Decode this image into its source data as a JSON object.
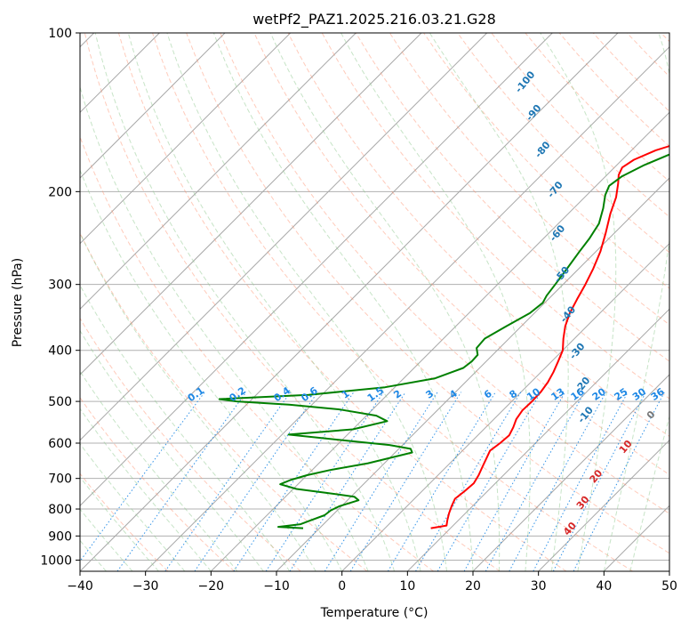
{
  "chart_data": {
    "type": "line",
    "title": "wetPf2_PAZ1.2025.216.03.21.G28",
    "xlabel": "Temperature (°C)",
    "ylabel": "Pressure (hPa)",
    "xlim": [
      -40,
      50
    ],
    "ylim": [
      1050,
      100
    ],
    "y_scale": "log",
    "grid": true,
    "x_ticks": [
      "−40",
      "−30",
      "−20",
      "−10",
      "0",
      "10",
      "20",
      "30",
      "40",
      "50"
    ],
    "y_ticks": [
      {
        "p": 100,
        "label": "100"
      },
      {
        "p": 200,
        "label": "200"
      },
      {
        "p": 300,
        "label": "300"
      },
      {
        "p": 400,
        "label": "400"
      },
      {
        "p": 500,
        "label": "500"
      },
      {
        "p": 600,
        "label": "600"
      },
      {
        "p": 700,
        "label": "700"
      },
      {
        "p": 800,
        "label": "800"
      },
      {
        "p": 900,
        "label": "900"
      },
      {
        "p": 1000,
        "label": "1000"
      }
    ],
    "series": [
      {
        "color": "#ff0000",
        "points": [
          [
            7,
            870
          ],
          [
            9,
            860
          ],
          [
            8.3,
            840
          ],
          [
            7.5,
            815
          ],
          [
            6.8,
            790
          ],
          [
            6.2,
            765
          ],
          [
            6.5,
            740
          ],
          [
            6.7,
            715
          ],
          [
            6.2,
            690
          ],
          [
            5.5,
            665
          ],
          [
            4.8,
            640
          ],
          [
            4.2,
            620
          ],
          [
            4.6,
            600
          ],
          [
            4.8,
            580
          ],
          [
            4.2,
            560
          ],
          [
            3.4,
            540
          ],
          [
            3.0,
            520
          ],
          [
            3.1,
            500
          ],
          [
            3.0,
            480
          ],
          [
            2.6,
            460
          ],
          [
            1.9,
            440
          ],
          [
            1.0,
            420
          ],
          [
            0.0,
            400
          ],
          [
            -1.7,
            380
          ],
          [
            -3.3,
            360
          ],
          [
            -4.6,
            340
          ],
          [
            -5.6,
            320
          ],
          [
            -6.6,
            300
          ],
          [
            -7.8,
            280
          ],
          [
            -9.3,
            260
          ],
          [
            -11.3,
            240
          ],
          [
            -13.6,
            220
          ],
          [
            -15.2,
            205
          ],
          [
            -17.0,
            193
          ],
          [
            -18.2,
            186
          ],
          [
            -18.8,
            180
          ],
          [
            -18.2,
            174
          ],
          [
            -16.3,
            167
          ],
          [
            -13.0,
            160
          ],
          [
            -9.5,
            153
          ],
          [
            -7.5,
            148
          ],
          [
            -6.5,
            143
          ],
          [
            -5.8,
            137
          ],
          [
            -4.6,
            130
          ],
          [
            -3.4,
            123
          ],
          [
            -2.8,
            117
          ],
          [
            -2.5,
            111
          ],
          [
            -2.4,
            106
          ],
          [
            -2.4,
            100
          ]
        ]
      },
      {
        "color": "#008000",
        "points": [
          [
            -12.5,
            870
          ],
          [
            -16.5,
            865
          ],
          [
            -13.5,
            855
          ],
          [
            -12.5,
            840
          ],
          [
            -11.2,
            822
          ],
          [
            -11.0,
            805
          ],
          [
            -10.3,
            790
          ],
          [
            -8.3,
            770
          ],
          [
            -9.5,
            758
          ],
          [
            -14.5,
            745
          ],
          [
            -19.5,
            733
          ],
          [
            -22.7,
            718
          ],
          [
            -21.8,
            705
          ],
          [
            -20.0,
            690
          ],
          [
            -17.3,
            675
          ],
          [
            -12.5,
            655
          ],
          [
            -7.4,
            625
          ],
          [
            -8.2,
            615
          ],
          [
            -12.0,
            605
          ],
          [
            -19.5,
            593
          ],
          [
            -29.0,
            578
          ],
          [
            -20.0,
            565
          ],
          [
            -16.0,
            545
          ],
          [
            -18.5,
            532
          ],
          [
            -25.0,
            518
          ],
          [
            -33.5,
            507
          ],
          [
            -42.0,
            500
          ],
          [
            -45.0,
            495
          ],
          [
            -32.0,
            486
          ],
          [
            -21.5,
            470
          ],
          [
            -15.2,
            452
          ],
          [
            -12.5,
            432
          ],
          [
            -12.2,
            420
          ],
          [
            -12.3,
            408
          ],
          [
            -13.5,
            396
          ],
          [
            -13.7,
            380
          ],
          [
            -12.3,
            360
          ],
          [
            -10.7,
            340
          ],
          [
            -10.3,
            325
          ],
          [
            -10.8,
            315
          ],
          [
            -11.2,
            300
          ],
          [
            -11.8,
            280
          ],
          [
            -12.5,
            260
          ],
          [
            -13.0,
            245
          ],
          [
            -13.8,
            230
          ],
          [
            -15.5,
            215
          ],
          [
            -17.2,
            203
          ],
          [
            -18.0,
            195
          ],
          [
            -17.5,
            187
          ],
          [
            -15.8,
            178
          ],
          [
            -13.0,
            168
          ],
          [
            -10.5,
            160
          ],
          [
            -8.6,
            152
          ],
          [
            -8.2,
            145
          ],
          [
            -8.0,
            140
          ],
          [
            -7.6,
            134
          ],
          [
            -6.0,
            125
          ],
          [
            -4.8,
            118
          ],
          [
            -4.2,
            112
          ],
          [
            -3.4,
            106
          ],
          [
            -2.5,
            100
          ]
        ]
      }
    ],
    "dry_adiabat_labels": [
      {
        "text": "-100",
        "T": -46,
        "p": 125
      },
      {
        "text": "-90",
        "T": -40,
        "p": 143
      },
      {
        "text": "-80",
        "T": -33,
        "p": 168
      },
      {
        "text": "-70",
        "T": -25,
        "p": 200
      },
      {
        "text": "-60",
        "T": -18,
        "p": 242
      },
      {
        "text": "-50",
        "T": -11,
        "p": 290
      },
      {
        "text": "-40",
        "T": -4,
        "p": 345
      },
      {
        "text": "-30",
        "T": 3,
        "p": 405
      },
      {
        "text": "-20",
        "T": 9,
        "p": 470
      },
      {
        "text": "-10",
        "T": 14,
        "p": 535
      }
    ],
    "mixing_ratio_labels": [
      "0.1",
      "0.2",
      "0.4",
      "0.6",
      "1",
      "1.5",
      "2",
      "3",
      "4",
      "6",
      "8",
      "10",
      "13",
      "16",
      "20",
      "25",
      "30",
      "36"
    ],
    "moist_adiabat_labels": [
      {
        "text": "0",
        "color": "#777777"
      },
      {
        "text": "10",
        "color": "#d62728"
      },
      {
        "text": "20",
        "color": "#d62728"
      },
      {
        "text": "30",
        "color": "#d62728"
      },
      {
        "text": "40",
        "color": "#d62728"
      }
    ]
  }
}
